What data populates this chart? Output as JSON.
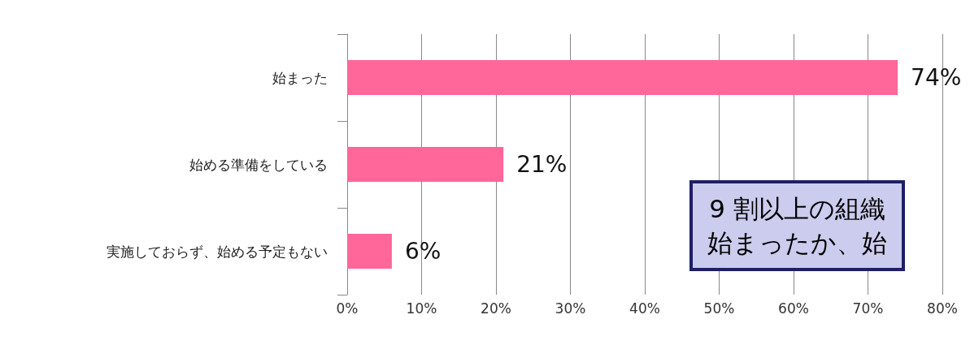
{
  "chart_data": {
    "type": "bar",
    "orientation": "horizontal",
    "categories": [
      "始まった",
      "始める準備をしている",
      "実施しておらず、始める予定もない"
    ],
    "values": [
      74,
      21,
      6
    ],
    "color": "#ff6699",
    "value_labels": [
      "74%",
      "21%",
      "6%"
    ],
    "xlim": [
      0,
      80
    ],
    "xticks": [
      {
        "value": 0,
        "label": "0%"
      },
      {
        "value": 10,
        "label": "10%"
      },
      {
        "value": 20,
        "label": "20%"
      },
      {
        "value": 30,
        "label": "30%"
      },
      {
        "value": 40,
        "label": "40%"
      },
      {
        "value": 50,
        "label": "50%"
      },
      {
        "value": 60,
        "label": "60%"
      },
      {
        "value": 70,
        "label": "70%"
      },
      {
        "value": 80,
        "label": "80%"
      }
    ],
    "grid": "x",
    "annotations": [
      "9 割以上の組織",
      "始まったか、始"
    ]
  }
}
